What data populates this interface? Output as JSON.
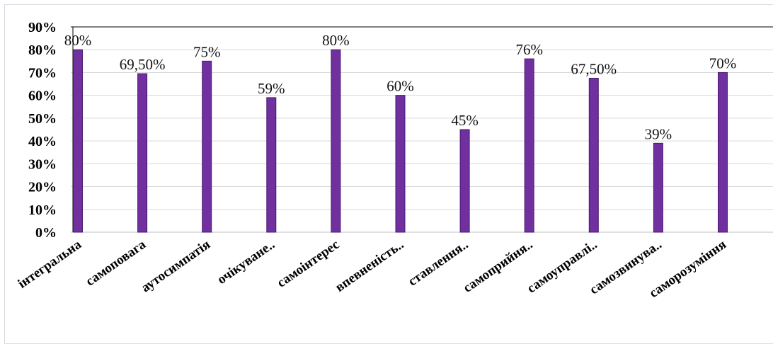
{
  "chart_data": {
    "type": "bar",
    "categories": [
      "інтегральна",
      "самоповага",
      "аутосимпатія",
      "очікуване..",
      "самоінтерес",
      "впевненість..",
      "ставлення..",
      "самоприйня..",
      "самоуправлі..",
      "самозвинува..",
      "саморозуміння"
    ],
    "values": [
      80,
      69.5,
      75,
      59,
      80,
      60,
      45,
      76,
      67.5,
      39,
      70
    ],
    "data_labels": [
      "80%",
      "69,50%",
      "75%",
      "59%",
      "80%",
      "60%",
      "45%",
      "76%",
      "67,50%",
      "39%",
      "70%"
    ],
    "yticks": [
      "0%",
      "10%",
      "20%",
      "30%",
      "40%",
      "50%",
      "60%",
      "70%",
      "80%",
      "90%"
    ],
    "ylim": [
      0,
      90
    ],
    "grid": true,
    "colors": {
      "bar": "#7030a0",
      "bar_edge": "#4b1a6e",
      "grid": "#d9d9d9",
      "axis": "#000000"
    }
  }
}
